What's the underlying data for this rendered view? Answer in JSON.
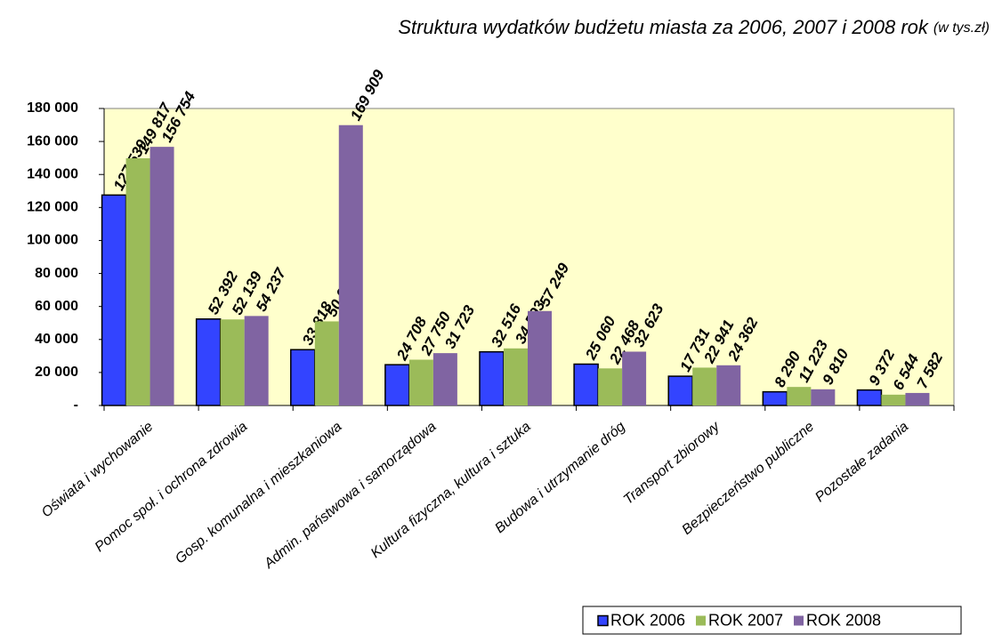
{
  "chart_data": {
    "type": "bar",
    "title": "Struktura wydatków budżetu miasta za 2006, 2007 i 2008 rok",
    "subtitle": "(w tys.zł)",
    "categories": [
      "Oświata i wychowanie",
      "Pomoc społ. i ochrona zdrowia",
      "Gosp. komunalna i mieszkaniowa",
      "Admin. państwowa i samorządowa",
      "Kultura fizyczna, kultura i sztuka",
      "Budowa i utrzymanie dróg",
      "Transport zbiorowy",
      "Bezpieczeństwo publiczne",
      "Pozostałe zadania"
    ],
    "series": [
      {
        "name": "ROK 2006",
        "color": "#3344ff",
        "edgecolor": "#000000",
        "label_color": "#1f2a6b",
        "values": [
          127539,
          52392,
          33818,
          24708,
          32516,
          25060,
          17731,
          8290,
          9372
        ],
        "value_labels": [
          "127 539",
          "52 392",
          "33 818",
          "24 708",
          "32 516",
          "25 060",
          "17 731",
          "8 290",
          "9 372"
        ]
      },
      {
        "name": "ROK 2007",
        "color": "#9bbb59",
        "label_color": "#5d7a2a",
        "values": [
          149817,
          52139,
          50961,
          27750,
          34593,
          22468,
          22941,
          11223,
          6544
        ],
        "value_labels": [
          "149 817",
          "52 139",
          "50 961",
          "27 750",
          "34 593",
          "22 468",
          "22 941",
          "11 223",
          "6 544"
        ]
      },
      {
        "name": "ROK 2008",
        "color": "#8064a2",
        "label_color": "#5e3f76",
        "values": [
          156754,
          54237,
          169909,
          31723,
          57249,
          32623,
          24362,
          9810,
          7582
        ],
        "value_labels": [
          "156 754",
          "54 237",
          "169 909",
          "31 723",
          "57 249",
          "32 623",
          "24 362",
          "9 810",
          "7 582"
        ]
      }
    ],
    "ylim": [
      0,
      180000
    ],
    "yticks": [
      {
        "value": 0,
        "label": "-"
      },
      {
        "value": 20000,
        "label": "20 000"
      },
      {
        "value": 40000,
        "label": "40 000"
      },
      {
        "value": 60000,
        "label": "60 000"
      },
      {
        "value": 80000,
        "label": "80 000"
      },
      {
        "value": 100000,
        "label": "100 000"
      },
      {
        "value": 120000,
        "label": "120 000"
      },
      {
        "value": 140000,
        "label": "140 000"
      },
      {
        "value": 160000,
        "label": "160 000"
      },
      {
        "value": 180000,
        "label": "180 000"
      }
    ],
    "grid": false,
    "legend": "bottom-right",
    "plot_background": "#ffffcc"
  }
}
